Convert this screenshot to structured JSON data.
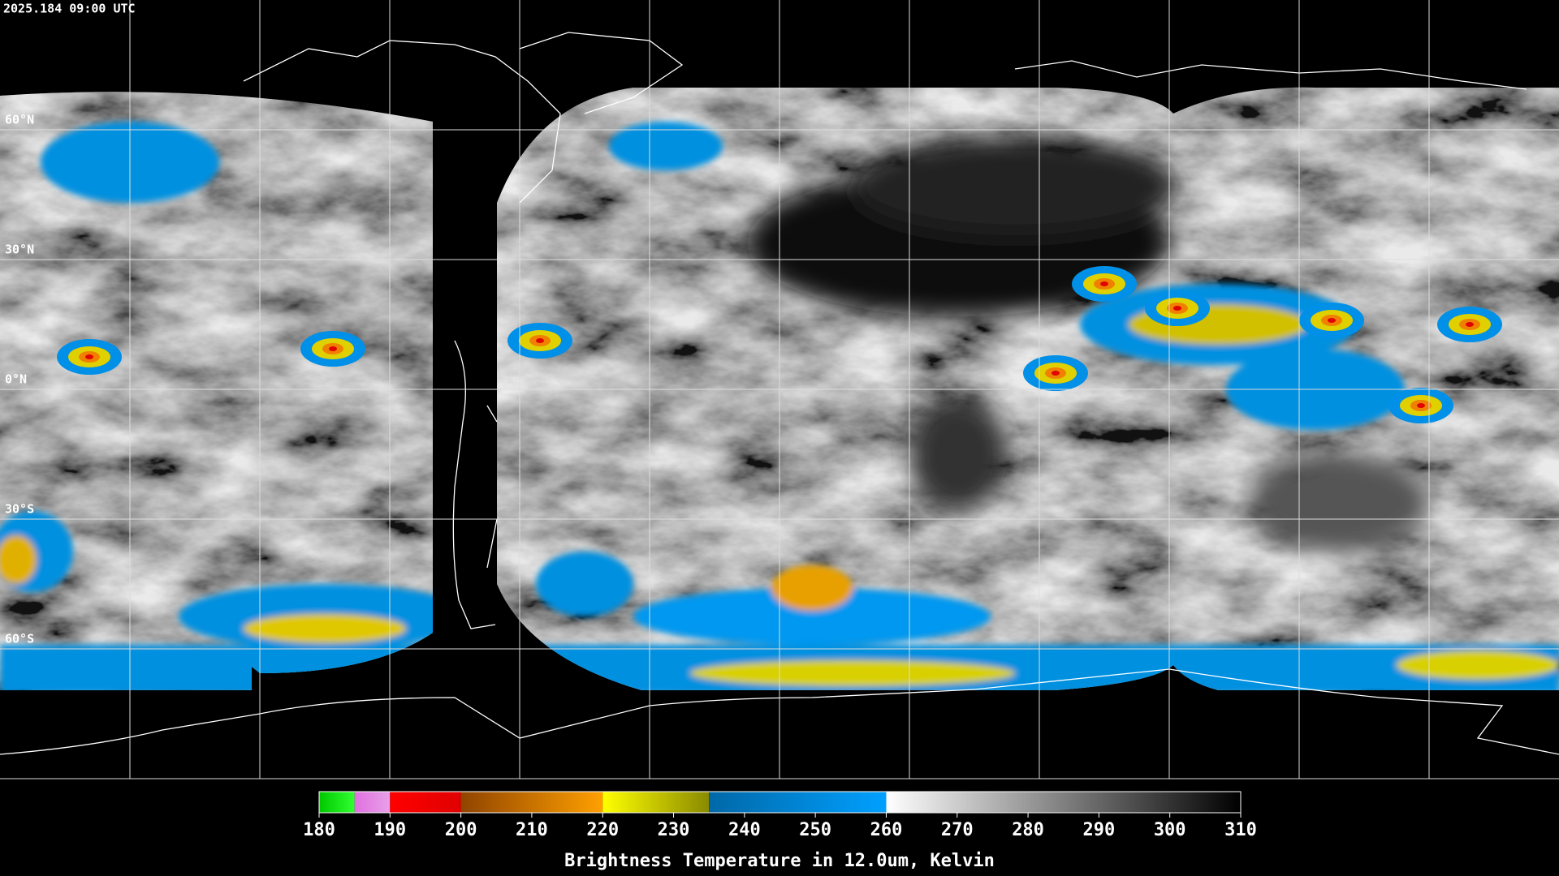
{
  "header": {
    "title": "2025.184 09:00 UTC"
  },
  "map": {
    "lat_lines": [
      {
        "value": 60,
        "label": "60°N"
      },
      {
        "value": 30,
        "label": "30°N"
      },
      {
        "value": 0,
        "label": "0°N"
      },
      {
        "value": -30,
        "label": "30°S"
      },
      {
        "value": -60,
        "label": "60°S"
      }
    ]
  },
  "colorbar": {
    "label": "Brightness Temperature in 12.0um, Kelvin",
    "range": [
      180,
      310
    ],
    "ticks": [
      180,
      190,
      200,
      210,
      220,
      230,
      240,
      250,
      260,
      270,
      280,
      290,
      300,
      310
    ],
    "segments": [
      {
        "from": 180,
        "to": 185,
        "colors": [
          "#00c800",
          "#30ff30"
        ]
      },
      {
        "from": 185,
        "to": 190,
        "colors": [
          "#e070e0",
          "#e8a0e8"
        ]
      },
      {
        "from": 190,
        "to": 200,
        "colors": [
          "#ff0000",
          "#e00000"
        ]
      },
      {
        "from": 200,
        "to": 220,
        "colors": [
          "#904400",
          "#ffa000"
        ]
      },
      {
        "from": 220,
        "to": 235,
        "colors": [
          "#ffff00",
          "#8a8a00"
        ]
      },
      {
        "from": 235,
        "to": 260,
        "colors": [
          "#0068a8",
          "#00a0ff"
        ]
      },
      {
        "from": 260,
        "to": 310,
        "colors": [
          "#ffffff",
          "#000000"
        ]
      }
    ]
  }
}
